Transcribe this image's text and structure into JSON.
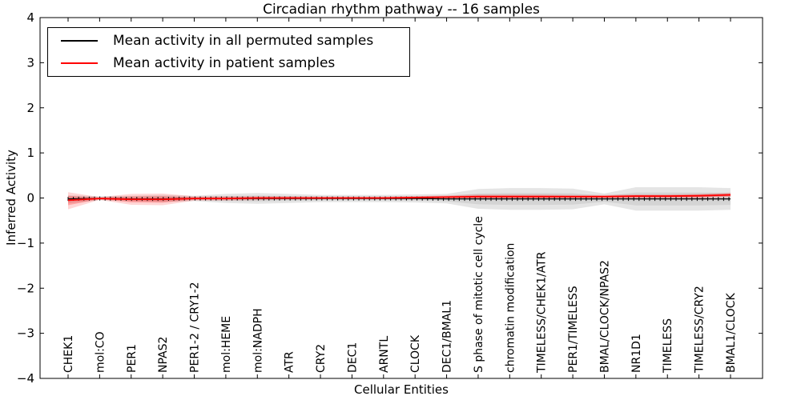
{
  "title": "Circadian rhythm pathway -- 16 samples",
  "xlabel": "Cellular Entities",
  "ylabel": "Inferred Activity",
  "legend": {
    "items": [
      {
        "label": "Mean activity in all permuted samples",
        "color": "#000000"
      },
      {
        "label": "Mean activity in patient samples",
        "color": "#ff0000"
      }
    ]
  },
  "chart_data": {
    "type": "line",
    "title": "Circadian rhythm pathway -- 16 samples",
    "xlabel": "Cellular Entities",
    "ylabel": "Inferred Activity",
    "ylim": [
      -4,
      4
    ],
    "yticks": [
      -4,
      -3,
      -2,
      -1,
      0,
      1,
      2,
      3,
      4
    ],
    "grid": false,
    "legend_position": "upper left",
    "categories": [
      "CHEK1",
      "mol:CO",
      "PER1",
      "NPAS2",
      "PER1-2 / CRY1-2",
      "mol:HEME",
      "mol:NADPH",
      "ATR",
      "CRY2",
      "DEC1",
      "ARNTL",
      "CLOCK",
      "DEC1/BMAL1",
      "S phase of mitotic cell cycle",
      "chromatin modification",
      "TIMELESS/CHEK1/ATR",
      "PER1/TIMELESS",
      "BMAL/CLOCK/NPAS2",
      "NR1D1",
      "TIMELESS",
      "TIMELESS/CRY2",
      "BMAL1/CLOCK"
    ],
    "series": [
      {
        "name": "Mean activity in all permuted samples",
        "color": "#000000",
        "line_style": "solid-with-tick-markers",
        "values": [
          -0.02,
          -0.01,
          -0.02,
          -0.02,
          -0.01,
          -0.01,
          -0.01,
          -0.01,
          -0.01,
          -0.01,
          -0.01,
          -0.01,
          -0.02,
          -0.02,
          -0.02,
          -0.02,
          -0.02,
          -0.02,
          -0.02,
          -0.02,
          -0.02,
          -0.02
        ],
        "band_upper": [
          0.06,
          0.04,
          0.05,
          0.07,
          0.05,
          0.09,
          0.11,
          0.09,
          0.07,
          0.07,
          0.07,
          0.08,
          0.09,
          0.2,
          0.22,
          0.22,
          0.21,
          0.1,
          0.24,
          0.24,
          0.24,
          0.22
        ],
        "band_lower": [
          -0.12,
          -0.05,
          -0.07,
          -0.09,
          -0.07,
          -0.11,
          -0.13,
          -0.11,
          -0.09,
          -0.09,
          -0.09,
          -0.1,
          -0.12,
          -0.24,
          -0.26,
          -0.26,
          -0.25,
          -0.14,
          -0.28,
          -0.28,
          -0.28,
          -0.26
        ],
        "band_color": "#000000",
        "band_opacity_outer": 0.1,
        "band_opacity_inner": 0.07
      },
      {
        "name": "Mean activity in patient samples",
        "color": "#ff0000",
        "line_style": "solid",
        "values": [
          -0.05,
          -0.01,
          -0.03,
          -0.03,
          -0.01,
          -0.01,
          0.0,
          0.0,
          0.0,
          0.0,
          0.0,
          0.01,
          0.02,
          0.03,
          0.03,
          0.03,
          0.03,
          0.03,
          0.04,
          0.04,
          0.05,
          0.07
        ],
        "band_upper": [
          0.13,
          0.02,
          0.09,
          0.1,
          0.04,
          0.04,
          0.04,
          0.04,
          0.03,
          0.03,
          0.03,
          0.04,
          0.06,
          0.08,
          0.08,
          0.08,
          0.07,
          0.07,
          0.08,
          0.08,
          0.09,
          0.12
        ],
        "band_lower": [
          -0.25,
          -0.04,
          -0.15,
          -0.16,
          -0.06,
          -0.06,
          -0.05,
          -0.04,
          -0.03,
          -0.03,
          -0.03,
          -0.03,
          -0.02,
          -0.02,
          -0.02,
          -0.02,
          -0.01,
          -0.01,
          -0.01,
          -0.01,
          -0.01,
          0.02
        ],
        "band_color": "#ff0000",
        "band_opacity_outer": 0.16,
        "band_opacity_inner": 0.24
      }
    ]
  }
}
